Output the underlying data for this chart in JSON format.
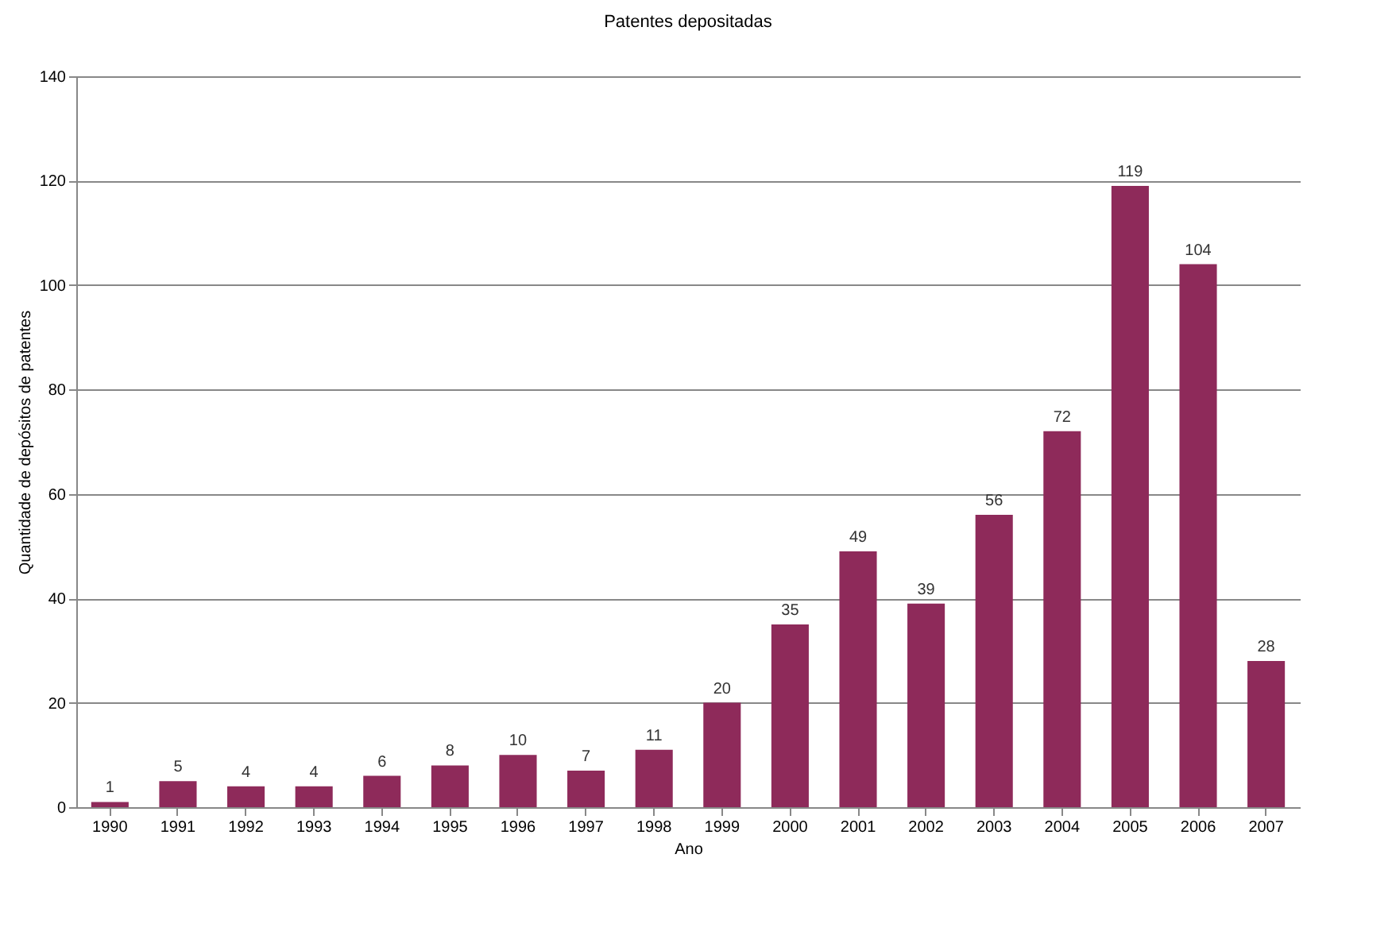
{
  "chart_data": {
    "type": "bar",
    "title": "Patentes depositadas",
    "xlabel": "Ano",
    "ylabel": "Quantidade de depósitos de patentes",
    "categories": [
      "1990",
      "1991",
      "1992",
      "1993",
      "1994",
      "1995",
      "1996",
      "1997",
      "1998",
      "1999",
      "2000",
      "2001",
      "2002",
      "2003",
      "2004",
      "2005",
      "2006",
      "2007"
    ],
    "values": [
      1,
      5,
      4,
      4,
      6,
      8,
      10,
      7,
      11,
      20,
      35,
      49,
      39,
      56,
      72,
      119,
      104,
      28
    ],
    "color": "#8e2a5a",
    "ylim": [
      0,
      140
    ],
    "yticks": [
      0,
      20,
      40,
      60,
      80,
      100,
      120,
      140
    ],
    "grid": "y",
    "data_labels": true
  }
}
